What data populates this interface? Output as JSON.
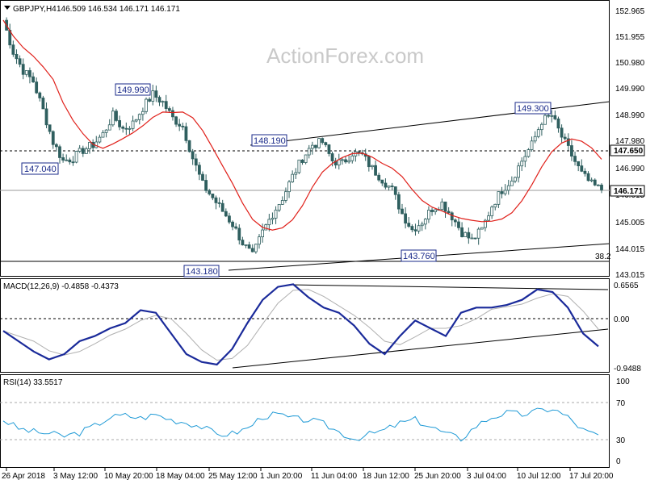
{
  "header": {
    "symbol_label": "GBPJPY,H4",
    "ohlc_text": "146.509 146.534 146.171 146.171"
  },
  "watermark": "ActionForex.com",
  "chart_data": [
    {
      "type": "candlestick",
      "title": "GBPJPY,H4 146.509 146.534 146.171 146.171",
      "y_ticks": [
        "152.965",
        "151.955",
        "150.980",
        "149.990",
        "148.990",
        "147.980",
        "146.990",
        "146.015",
        "145.005",
        "144.015",
        "143.015"
      ],
      "ylim": [
        143.015,
        152.965
      ],
      "current_price": "146.171",
      "horizontal_levels": [
        {
          "price": 147.65,
          "label": "147.650",
          "style": "dashed"
        },
        {
          "price": 143.6,
          "label": "38.2",
          "style": "solid"
        }
      ],
      "price_flags": [
        {
          "label": "147.040"
        },
        {
          "label": "149.990"
        },
        {
          "label": "148.190"
        },
        {
          "label": "143.180"
        },
        {
          "label": "143.760"
        },
        {
          "label": "149.300"
        }
      ],
      "x_ticks": [
        "26 Apr 2018",
        "3 May 12:00",
        "10 May 20:00",
        "18 May 04:00",
        "25 May 12:00",
        "1 Jun 20:00",
        "11 Jun 04:00",
        "18 Jun 12:00",
        "25 Jun 20:00",
        "3 Jul 04:00",
        "10 Jul 12:00",
        "17 Jul 20:00"
      ],
      "close_series": [
        152.6,
        151.4,
        150.7,
        150.3,
        149.2,
        148.0,
        147.3,
        147.4,
        147.7,
        147.9,
        148.3,
        149.0,
        148.5,
        148.7,
        149.3,
        149.8,
        149.5,
        148.9,
        148.6,
        147.4,
        146.4,
        145.9,
        145.4,
        144.9,
        144.2,
        143.7,
        144.6,
        145.3,
        145.9,
        146.7,
        147.4,
        147.9,
        148.0,
        147.3,
        147.2,
        147.6,
        147.5,
        147.0,
        146.6,
        146.2,
        145.3,
        144.7,
        145.0,
        145.5,
        145.7,
        145.2,
        144.6,
        144.3,
        144.7,
        145.6,
        146.2,
        146.6,
        147.3,
        147.9,
        148.8,
        149.0,
        148.2,
        147.5,
        146.8,
        146.4,
        146.2
      ],
      "series": [
        {
          "name": "SMA (red)"
        }
      ]
    },
    {
      "type": "line",
      "title": "MACD(12,26,9) -0.4858 -0.4373",
      "y_ticks": [
        "0.6565",
        "0.00",
        "-0.9488"
      ],
      "ylim": [
        -0.9488,
        0.6565
      ],
      "macd": [
        -0.25,
        -0.45,
        -0.65,
        -0.8,
        -0.7,
        -0.45,
        -0.35,
        -0.2,
        -0.1,
        0.15,
        0.1,
        -0.3,
        -0.7,
        -0.85,
        -0.9,
        -0.6,
        -0.1,
        0.35,
        0.6,
        0.65,
        0.4,
        0.2,
        0.1,
        -0.15,
        -0.5,
        -0.7,
        -0.35,
        -0.05,
        -0.2,
        -0.35,
        0.1,
        0.2,
        0.2,
        0.25,
        0.35,
        0.55,
        0.5,
        0.2,
        -0.3,
        -0.55
      ],
      "series": [
        {
          "name": "MACD(12,26,9)"
        }
      ]
    },
    {
      "type": "line",
      "title": "RSI(14) 33.5517",
      "y_ticks": [
        "100",
        "70",
        "30",
        "0"
      ],
      "ylim": [
        0,
        100
      ],
      "rsi": [
        52,
        42,
        38,
        36,
        33,
        37,
        45,
        55,
        57,
        54,
        58,
        52,
        49,
        44,
        35,
        36,
        42,
        56,
        58,
        53,
        52,
        47,
        38,
        30,
        35,
        40,
        48,
        52,
        44,
        36,
        30,
        45,
        55,
        60,
        58,
        62,
        65,
        55,
        40,
        33
      ],
      "series": [
        {
          "name": "RSI(14)"
        }
      ]
    }
  ],
  "macd_label": "MACD(12,26,9) -0.4858 -0.4373",
  "rsi_label": "RSI(14) 33.5517",
  "colors": {
    "candle": "#2f5f5f",
    "sma": "#e0201a",
    "macd": "#1a2a9a",
    "signal": "#b0b0b0",
    "rsi": "#1f9ad6",
    "flag_border": "#1a2a8a"
  }
}
